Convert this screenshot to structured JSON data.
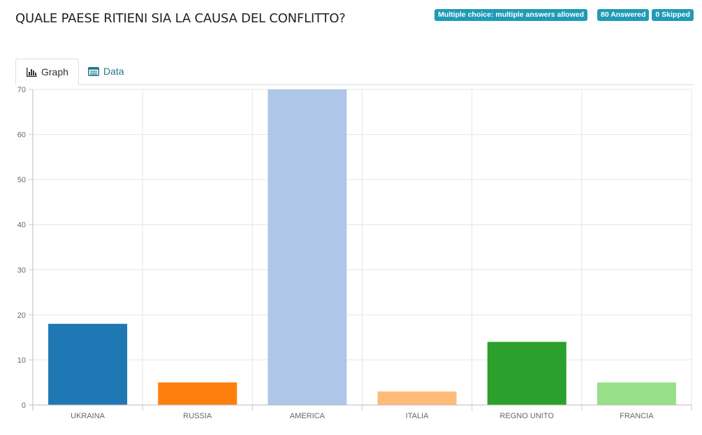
{
  "question": {
    "title": "QUALE PAESE RITIENI SIA LA CAUSA DEL CONFLITTO?"
  },
  "badges": {
    "type": "Multiple choice: multiple answers allowed",
    "answered": "80 Answered",
    "skipped": "0 Skipped",
    "color": "#1f9bb5"
  },
  "tabs": [
    {
      "label": "Graph",
      "icon": "bar-chart-icon",
      "active": true
    },
    {
      "label": "Data",
      "icon": "table-icon",
      "active": false
    }
  ],
  "chart_data": {
    "type": "bar",
    "categories": [
      "UKRAINA",
      "RUSSIA",
      "AMERICA",
      "ITALIA",
      "REGNO UNITO",
      "FRANCIA"
    ],
    "values": [
      18,
      5,
      70,
      3,
      14,
      5
    ],
    "colors": [
      "#1f77b4",
      "#ff7f0e",
      "#aec7e8",
      "#ffbb78",
      "#2ca02c",
      "#98df8a"
    ],
    "title": "",
    "xlabel": "",
    "ylabel": "",
    "ylim": [
      0,
      70
    ],
    "yticks": [
      0,
      10,
      20,
      30,
      40,
      50,
      60,
      70
    ],
    "grid": true,
    "legend": "none"
  }
}
